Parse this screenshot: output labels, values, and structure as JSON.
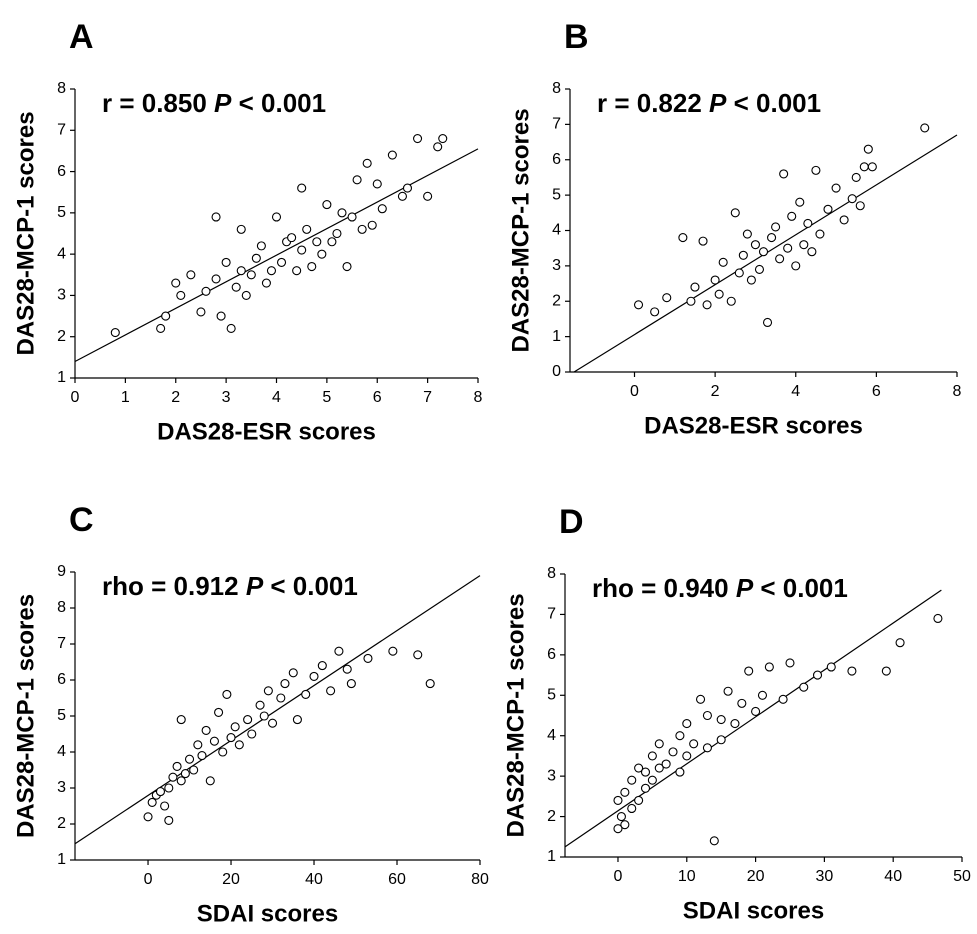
{
  "chart_data": [
    {
      "type": "scatter",
      "panel": "A",
      "annotation": [
        "r = 0.850 ",
        "P",
        " < 0.001"
      ],
      "xlabel": "DAS28-ESR scores",
      "ylabel": "DAS28-MCP-1 scores",
      "xlim": [
        0,
        8
      ],
      "ylim": [
        1,
        8
      ],
      "xticks": [
        0,
        1,
        2,
        3,
        4,
        5,
        6,
        7,
        8
      ],
      "yticks": [
        1,
        2,
        3,
        4,
        5,
        6,
        7,
        8
      ],
      "x": [
        0.8,
        1.7,
        1.8,
        2.0,
        2.1,
        2.3,
        2.5,
        2.6,
        2.8,
        2.8,
        2.9,
        3.0,
        3.1,
        3.2,
        3.3,
        3.3,
        3.4,
        3.5,
        3.6,
        3.7,
        3.8,
        3.9,
        4.0,
        4.1,
        4.2,
        4.3,
        4.4,
        4.5,
        4.5,
        4.6,
        4.7,
        4.8,
        4.9,
        5.0,
        5.1,
        5.2,
        5.3,
        5.4,
        5.5,
        5.6,
        5.7,
        5.8,
        5.9,
        6.0,
        6.1,
        6.3,
        6.5,
        6.6,
        6.8,
        7.0,
        7.2,
        7.3
      ],
      "y": [
        2.1,
        2.2,
        2.5,
        3.3,
        3.0,
        3.5,
        2.6,
        3.1,
        4.9,
        3.4,
        2.5,
        3.8,
        2.2,
        3.2,
        4.6,
        3.6,
        3.0,
        3.5,
        3.9,
        4.2,
        3.3,
        3.6,
        4.9,
        3.8,
        4.3,
        4.4,
        3.6,
        5.6,
        4.1,
        4.6,
        3.7,
        4.3,
        4.0,
        5.2,
        4.3,
        4.5,
        5.0,
        3.7,
        4.9,
        5.8,
        4.6,
        6.2,
        4.7,
        5.7,
        5.1,
        6.4,
        5.4,
        5.6,
        6.8,
        5.4,
        6.6,
        6.8
      ],
      "trend": {
        "x": [
          0,
          8
        ],
        "y": [
          1.4,
          6.55
        ]
      }
    },
    {
      "type": "scatter",
      "panel": "B",
      "annotation": [
        "r = 0.822 ",
        "P",
        " < 0.001"
      ],
      "xlabel": "DAS28-ESR scores",
      "ylabel": "DAS28-MCP-1 scores",
      "xlim": [
        -1.6,
        8
      ],
      "ylim": [
        0,
        8
      ],
      "xticks": [
        0,
        2,
        4,
        6,
        8
      ],
      "yticks": [
        0,
        1,
        2,
        3,
        4,
        5,
        6,
        7,
        8
      ],
      "x": [
        0.1,
        0.5,
        0.8,
        1.2,
        1.4,
        1.5,
        1.7,
        1.8,
        2.0,
        2.1,
        2.2,
        2.4,
        2.5,
        2.6,
        2.7,
        2.8,
        2.9,
        3.0,
        3.1,
        3.2,
        3.3,
        3.4,
        3.5,
        3.6,
        3.7,
        3.8,
        3.9,
        4.0,
        4.1,
        4.2,
        4.3,
        4.4,
        4.5,
        4.6,
        4.8,
        5.0,
        5.2,
        5.4,
        5.5,
        5.6,
        5.7,
        5.8,
        5.9,
        7.2
      ],
      "y": [
        1.9,
        1.7,
        2.1,
        3.8,
        2.0,
        2.4,
        3.7,
        1.9,
        2.6,
        2.2,
        3.1,
        2.0,
        4.5,
        2.8,
        3.3,
        3.9,
        2.6,
        3.6,
        2.9,
        3.4,
        1.4,
        3.8,
        4.1,
        3.2,
        5.6,
        3.5,
        4.4,
        3.0,
        4.8,
        3.6,
        4.2,
        3.4,
        5.7,
        3.9,
        4.6,
        5.2,
        4.3,
        4.9,
        5.5,
        4.7,
        5.8,
        6.3,
        5.8,
        6.9
      ],
      "trend": {
        "x": [
          -1.5,
          8
        ],
        "y": [
          0,
          6.7
        ]
      }
    },
    {
      "type": "scatter",
      "panel": "C",
      "annotation": [
        "rho = 0.912 ",
        "P",
        " < 0.001"
      ],
      "xlabel": "SDAI scores",
      "ylabel": "DAS28-MCP-1 scores",
      "xlim": [
        -17.6,
        80
      ],
      "ylim": [
        1,
        9
      ],
      "xticks": [
        0,
        20,
        40,
        60,
        80
      ],
      "yticks": [
        1,
        2,
        3,
        4,
        5,
        6,
        7,
        8,
        9
      ],
      "x": [
        0,
        1,
        2,
        3,
        4,
        5,
        5,
        6,
        7,
        8,
        8,
        9,
        10,
        11,
        12,
        13,
        14,
        15,
        16,
        17,
        18,
        19,
        20,
        21,
        22,
        24,
        25,
        27,
        28,
        29,
        30,
        32,
        33,
        35,
        36,
        38,
        40,
        42,
        44,
        46,
        48,
        49,
        53,
        59,
        65,
        68
      ],
      "y": [
        2.2,
        2.6,
        2.8,
        2.9,
        2.5,
        2.1,
        3.0,
        3.3,
        3.6,
        4.9,
        3.2,
        3.4,
        3.8,
        3.5,
        4.2,
        3.9,
        4.6,
        3.2,
        4.3,
        5.1,
        4.0,
        5.6,
        4.4,
        4.7,
        4.2,
        4.9,
        4.5,
        5.3,
        5.0,
        5.7,
        4.8,
        5.5,
        5.9,
        6.2,
        4.9,
        5.6,
        6.1,
        6.4,
        5.7,
        6.8,
        6.3,
        5.9,
        6.6,
        6.8,
        6.7,
        5.9
      ],
      "trend": {
        "x": [
          -17.6,
          80
        ],
        "y": [
          1.45,
          8.9
        ]
      }
    },
    {
      "type": "scatter",
      "panel": "D",
      "annotation": [
        "rho = 0.940 ",
        "P",
        " < 0.001"
      ],
      "xlabel": "SDAI scores",
      "ylabel": "DAS28-MCP-1 scores",
      "xlim": [
        -7.7,
        50
      ],
      "ylim": [
        1,
        8
      ],
      "xticks": [
        0,
        10,
        20,
        30,
        40,
        50
      ],
      "yticks": [
        1,
        2,
        3,
        4,
        5,
        6,
        7,
        8
      ],
      "x": [
        0,
        0,
        0.5,
        1,
        1,
        2,
        2,
        3,
        3,
        4,
        4,
        5,
        5,
        6,
        6,
        7,
        8,
        9,
        9,
        10,
        10,
        11,
        12,
        13,
        13,
        14,
        15,
        15,
        16,
        17,
        18,
        19,
        20,
        21,
        22,
        24,
        25,
        27,
        29,
        31,
        34,
        39,
        41,
        46.5
      ],
      "y": [
        1.7,
        2.4,
        2.0,
        1.8,
        2.6,
        2.2,
        2.9,
        2.4,
        3.2,
        2.7,
        3.1,
        2.9,
        3.5,
        3.2,
        3.8,
        3.3,
        3.6,
        3.1,
        4.0,
        3.5,
        4.3,
        3.8,
        4.9,
        3.7,
        4.5,
        1.4,
        4.4,
        3.9,
        5.1,
        4.3,
        4.8,
        5.6,
        4.6,
        5.0,
        5.7,
        4.9,
        5.8,
        5.2,
        5.5,
        5.7,
        5.6,
        5.6,
        6.3,
        6.9
      ],
      "trend": {
        "x": [
          -7.7,
          47
        ],
        "y": [
          1.25,
          7.6
        ]
      }
    }
  ]
}
